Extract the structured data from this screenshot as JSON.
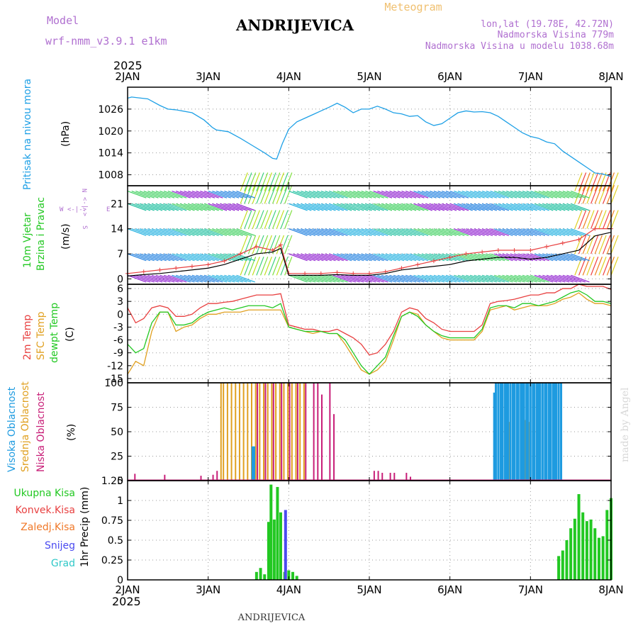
{
  "header": {
    "station": "ANDRIJEVICA",
    "meteogram_label": "Meteogram",
    "model_label": "Model",
    "model_name": "wrf-nmm_v3.9.1 e1km",
    "coords": "lon,lat (19.78E, 42.72N)",
    "altitude": "Nadmorska Visina 779m",
    "model_altitude": "Nadmorska Visina u modelu 1038.68m",
    "year_top": "2025",
    "year_bottom": "2025",
    "footer_station": "ANDRIJEVICA",
    "watermark": "made by Angel"
  },
  "colors": {
    "pressure": "#1ea0e6",
    "temp2m": "#e84040",
    "sfc_temp": "#e0a020",
    "dewpt": "#22c822",
    "cloud_high": "#1e9be0",
    "cloud_mid": "#e0a020",
    "cloud_low": "#c81e78",
    "precip_total": "#22c822",
    "precip_conv": "#e84040",
    "precip_frozen": "#f07828",
    "precip_snow": "#4a4af0",
    "precip_graupel": "#30c8c8",
    "wind_label": "#22c822",
    "compass": "#b070d0"
  },
  "days": [
    "2JAN",
    "3JAN",
    "4JAN",
    "5JAN",
    "6JAN",
    "7JAN",
    "8JAN"
  ],
  "panels": {
    "pressure": {
      "label": "Pritisak na nivou mora",
      "unit": "(hPa)"
    },
    "wind": {
      "label1": "10m Vjetar",
      "label2": "Brzina i Pravac",
      "unit": "(m/s)",
      "compass": {
        "n": "N",
        "s": "S",
        "e": "E",
        "w": "W",
        "arrow_h": "<-|->",
        "arrow_v": "<-|->"
      }
    },
    "temp": {
      "label1": "2m Temp",
      "label2": "SFC Temp",
      "label3": "dewpt Temp",
      "unit": "(C)"
    },
    "cloud": {
      "label1": "Visoka Oblacnost",
      "label2": "Srednja Oblacnost",
      "label3": "Niska Oblacnost",
      "unit": "(%)"
    },
    "precip": {
      "unit": "1hr Precip (mm)",
      "legend": [
        "Ukupna Kisa",
        "Konvek.Kisa",
        "Zaledj.Kisa",
        "Snijeg",
        "Grad"
      ]
    }
  },
  "chart_data": [
    {
      "type": "line",
      "title": "Pritisak na nivou mora",
      "ylabel": "(hPa)",
      "yticks": [
        "1008",
        "1014",
        "1020",
        "1026"
      ],
      "ylim": [
        1005,
        1032
      ],
      "x_days": [
        0,
        0.05,
        0.25,
        0.4,
        0.5,
        0.6,
        0.8,
        0.95,
        1.05,
        1.1,
        1.25,
        1.4,
        1.55,
        1.7,
        1.8,
        1.85,
        1.92,
        2.0,
        2.1,
        2.2,
        2.3,
        2.4,
        2.5,
        2.6,
        2.7,
        2.8,
        2.9,
        3.0,
        3.1,
        3.2,
        3.3,
        3.4,
        3.5,
        3.6,
        3.7,
        3.8,
        3.9,
        4.0,
        4.1,
        4.2,
        4.3,
        4.4,
        4.5,
        4.6,
        4.7,
        4.8,
        4.9,
        5.0,
        5.1,
        5.2,
        5.3,
        5.4,
        5.5,
        5.6,
        5.7,
        5.8,
        5.9,
        6.0
      ],
      "values": [
        1029,
        1029.3,
        1028.8,
        1027,
        1026,
        1025.8,
        1025,
        1023,
        1021,
        1020.3,
        1019.8,
        1018,
        1016,
        1014,
        1012.5,
        1012.3,
        1016.5,
        1020.5,
        1022.5,
        1023.5,
        1024.5,
        1025.5,
        1026.5,
        1027.6,
        1026.5,
        1025,
        1026,
        1026,
        1026.8,
        1026,
        1025,
        1024.7,
        1024,
        1024.2,
        1022.5,
        1021.5,
        1022,
        1023.5,
        1025,
        1025.5,
        1025.2,
        1025.3,
        1025,
        1024,
        1022.5,
        1021,
        1019.5,
        1018.5,
        1018,
        1017,
        1016.5,
        1014.5,
        1013,
        1011.5,
        1010,
        1008.5,
        1008.2,
        1007.5
      ],
      "color": "#1ea0e6"
    },
    {
      "type": "scatter",
      "title": "10m Vjetar Brzina i Pravac",
      "ylabel": "(m/s)",
      "yticks": [
        "0",
        "7",
        "14",
        "21"
      ],
      "ylim": [
        -1.5,
        26
      ],
      "series": [
        {
          "name": "",
          "x_days": [
            0,
            0.2,
            0.4,
            0.6,
            0.8,
            1.0,
            1.2,
            1.4,
            1.6,
            1.8,
            1.9,
            2.0,
            2.2,
            2.4,
            2.6,
            2.8,
            3.0,
            3.2,
            3.4,
            3.6,
            3.8,
            4.0,
            4.2,
            4.4,
            4.6,
            4.8,
            5.0,
            5.2,
            5.4,
            5.6,
            5.8,
            6.0
          ],
          "values": [
            1.5,
            2,
            2.5,
            3,
            3.5,
            4,
            5,
            7,
            9,
            8,
            9.5,
            1.5,
            1.5,
            1.5,
            1.8,
            1.5,
            1.5,
            2,
            3,
            4,
            5,
            6,
            7,
            7.5,
            8,
            8,
            8,
            9,
            10,
            11,
            14,
            14
          ],
          "color": "#e84040"
        },
        {
          "name": "",
          "x_days": [
            0,
            0.2,
            0.4,
            0.6,
            0.8,
            1.0,
            1.2,
            1.4,
            1.6,
            1.8,
            1.9,
            2.0,
            2.2,
            2.4,
            2.6,
            2.8,
            3.0,
            3.2,
            3.4,
            3.6,
            3.8,
            4.0,
            4.2,
            4.4,
            4.6,
            4.8,
            5.0,
            5.2,
            5.4,
            5.6,
            5.8,
            6.0
          ],
          "values": [
            0.8,
            1.2,
            1.5,
            2,
            2.5,
            3,
            4,
            5.5,
            7,
            7.5,
            8.5,
            1,
            1,
            1,
            1.2,
            1,
            1,
            1.5,
            2.5,
            3,
            3.5,
            4,
            5,
            5.5,
            6,
            6,
            5.5,
            6,
            7,
            8,
            12,
            13
          ],
          "color": "#000000"
        }
      ]
    },
    {
      "type": "line",
      "title": "2m Temp / SFC Temp / dewpt Temp",
      "ylabel": "(C)",
      "yticks": [
        "-15",
        "-12",
        "-9",
        "-6",
        "-3",
        "0",
        "3",
        "6"
      ],
      "ylim": [
        -16,
        7
      ],
      "x_days": [
        0,
        0.1,
        0.2,
        0.3,
        0.4,
        0.5,
        0.6,
        0.7,
        0.8,
        0.9,
        1.0,
        1.1,
        1.2,
        1.3,
        1.4,
        1.5,
        1.6,
        1.7,
        1.8,
        1.9,
        2.0,
        2.1,
        2.2,
        2.3,
        2.4,
        2.5,
        2.6,
        2.7,
        2.8,
        2.9,
        3.0,
        3.1,
        3.2,
        3.3,
        3.4,
        3.5,
        3.6,
        3.7,
        3.8,
        3.9,
        4.0,
        4.1,
        4.2,
        4.3,
        4.4,
        4.5,
        4.6,
        4.7,
        4.8,
        4.9,
        5.0,
        5.1,
        5.2,
        5.3,
        5.4,
        5.5,
        5.6,
        5.7,
        5.8,
        5.9,
        6.0
      ],
      "series": [
        {
          "name": "2m Temp",
          "values": [
            1.5,
            -2,
            -1,
            1.5,
            2,
            1.5,
            -0.5,
            -0.5,
            0,
            1.5,
            2.5,
            2.5,
            2.8,
            3,
            3.5,
            4,
            4.5,
            4.5,
            4.5,
            4.8,
            -2.5,
            -3,
            -3.5,
            -3.5,
            -4,
            -4,
            -3.5,
            -4.5,
            -5.5,
            -7,
            -9.5,
            -9,
            -7,
            -4,
            0.5,
            1.5,
            1,
            -1,
            -2,
            -3.5,
            -4,
            -4,
            -4,
            -4,
            -2.5,
            2.5,
            3,
            3.2,
            3.5,
            4,
            4.5,
            4.5,
            5,
            5,
            6,
            6,
            7,
            6.5,
            6.5,
            6.5,
            5.8
          ],
          "color": "#e84040"
        },
        {
          "name": "SFC Temp",
          "values": [
            -14,
            -11,
            -12,
            -4,
            0.5,
            0.5,
            -4,
            -3,
            -2.5,
            -1,
            0,
            0,
            0.5,
            0.5,
            0.5,
            1,
            1,
            1,
            1,
            1,
            -3,
            -3.5,
            -4,
            -4.5,
            -4,
            -4.5,
            -4.5,
            -7,
            -10,
            -13,
            -14,
            -13,
            -11,
            -6,
            -0.5,
            0.5,
            0,
            -2.5,
            -4,
            -5.5,
            -6,
            -6,
            -6,
            -6,
            -4,
            1,
            1.5,
            2,
            1,
            1.5,
            2,
            2,
            2,
            2.5,
            3.5,
            4,
            5,
            3.5,
            2.5,
            2.5,
            2
          ],
          "color": "#e0a020"
        },
        {
          "name": "dewpt Temp",
          "values": [
            -7,
            -9,
            -8,
            -2,
            0.5,
            0.5,
            -2.5,
            -2.5,
            -2,
            -0.5,
            0.5,
            1,
            1.5,
            1,
            1.5,
            2,
            2,
            2,
            1.5,
            2.5,
            -3,
            -3.5,
            -4,
            -4,
            -4,
            -4.5,
            -4.5,
            -6,
            -9,
            -12,
            -14,
            -12,
            -10,
            -5,
            -0.5,
            0.5,
            -0.5,
            -2.5,
            -4,
            -5,
            -5.5,
            -5.5,
            -5.5,
            -5.5,
            -3.5,
            1.5,
            2,
            2,
            1.5,
            2.5,
            2.5,
            2,
            2.5,
            3,
            4,
            5,
            5.5,
            4.5,
            3,
            3,
            2.5
          ],
          "color": "#22c822"
        }
      ]
    },
    {
      "type": "bar",
      "title": "Visoka / Srednja / Niska Oblacnost",
      "ylabel": "(%)",
      "yticks": [
        "0",
        "25",
        "50",
        "75",
        "100"
      ],
      "ylim": [
        0,
        100
      ],
      "series": [
        {
          "name": "Visoka Oblacnost",
          "x_days": [
            1.55,
            1.57,
            4.55,
            4.57,
            4.6,
            4.63,
            4.65,
            4.68,
            4.7,
            4.72,
            4.75,
            4.78,
            4.8,
            4.83,
            4.85,
            4.88,
            4.9,
            4.92,
            4.95,
            4.97,
            5.0,
            5.03,
            5.05,
            5.08,
            5.1,
            5.12,
            5.15,
            5.18,
            5.2,
            5.23,
            5.25,
            5.28,
            5.3,
            5.32,
            5.35,
            5.38
          ],
          "values": [
            35,
            35,
            90,
            100,
            100,
            100,
            100,
            100,
            100,
            100,
            100,
            100,
            100,
            100,
            100,
            100,
            100,
            100,
            100,
            100,
            100,
            100,
            100,
            100,
            100,
            100,
            100,
            100,
            100,
            100,
            100,
            100,
            100,
            100,
            100,
            100
          ],
          "color": "#1e9be0"
        },
        {
          "name": "Srednja Oblacnost",
          "x_days": [
            1.17,
            1.2,
            1.25,
            1.3,
            1.35,
            1.4,
            1.45,
            1.5,
            1.55,
            1.6,
            1.65,
            1.7,
            1.75,
            1.8,
            1.85,
            1.9,
            1.95,
            2.0,
            2.05,
            2.1,
            2.15,
            2.2,
            4.75,
            4.8,
            4.85,
            4.9,
            4.95,
            5.0,
            5.05
          ],
          "values": [
            100,
            100,
            100,
            100,
            100,
            100,
            100,
            100,
            100,
            100,
            100,
            100,
            100,
            100,
            100,
            100,
            100,
            100,
            100,
            100,
            100,
            100,
            60,
            70,
            65,
            60,
            62,
            60,
            60
          ],
          "color": "#e0a020"
        },
        {
          "name": "Niska Oblacnost",
          "x_days": [
            0.08,
            0.45,
            0.9,
            1.05,
            1.1,
            1.6,
            1.7,
            1.8,
            1.9,
            2.0,
            2.1,
            2.2,
            2.3,
            2.35,
            2.4,
            2.5,
            2.55,
            3.05,
            3.1,
            3.15,
            3.25,
            3.3,
            3.45,
            3.5
          ],
          "values": [
            7,
            6,
            5,
            6,
            10,
            100,
            100,
            100,
            100,
            100,
            100,
            100,
            100,
            100,
            88,
            100,
            68,
            10,
            10,
            8,
            8,
            8,
            8,
            4
          ],
          "color": "#c81e78"
        }
      ]
    },
    {
      "type": "bar",
      "title": "1hr Precip",
      "ylabel": "1hr Precip (mm)",
      "yticks": [
        "0",
        "0.25",
        "0.5",
        "0.75",
        "1",
        "1.25"
      ],
      "ylim": [
        0,
        1.25
      ],
      "series": [
        {
          "name": "Ukupna Kisa",
          "x_days": [
            1.6,
            1.65,
            1.7,
            1.75,
            1.78,
            1.82,
            1.86,
            1.9,
            1.95,
            2.0,
            2.05,
            2.1,
            5.35,
            5.4,
            5.45,
            5.5,
            5.55,
            5.6,
            5.65,
            5.7,
            5.75,
            5.8,
            5.85,
            5.9,
            5.95,
            6.0
          ],
          "values": [
            0.1,
            0.15,
            0.07,
            0.73,
            1.2,
            0.76,
            1.17,
            0.85,
            0.1,
            0.12,
            0.1,
            0.05,
            0.3,
            0.37,
            0.5,
            0.65,
            0.77,
            1.08,
            0.85,
            0.74,
            0.76,
            0.65,
            0.53,
            0.55,
            0.88,
            1.03
          ],
          "color": "#22c822"
        },
        {
          "name": "Snijeg",
          "x_days": [
            1.96
          ],
          "values": [
            0.88
          ],
          "color": "#4a4af0"
        }
      ]
    }
  ]
}
